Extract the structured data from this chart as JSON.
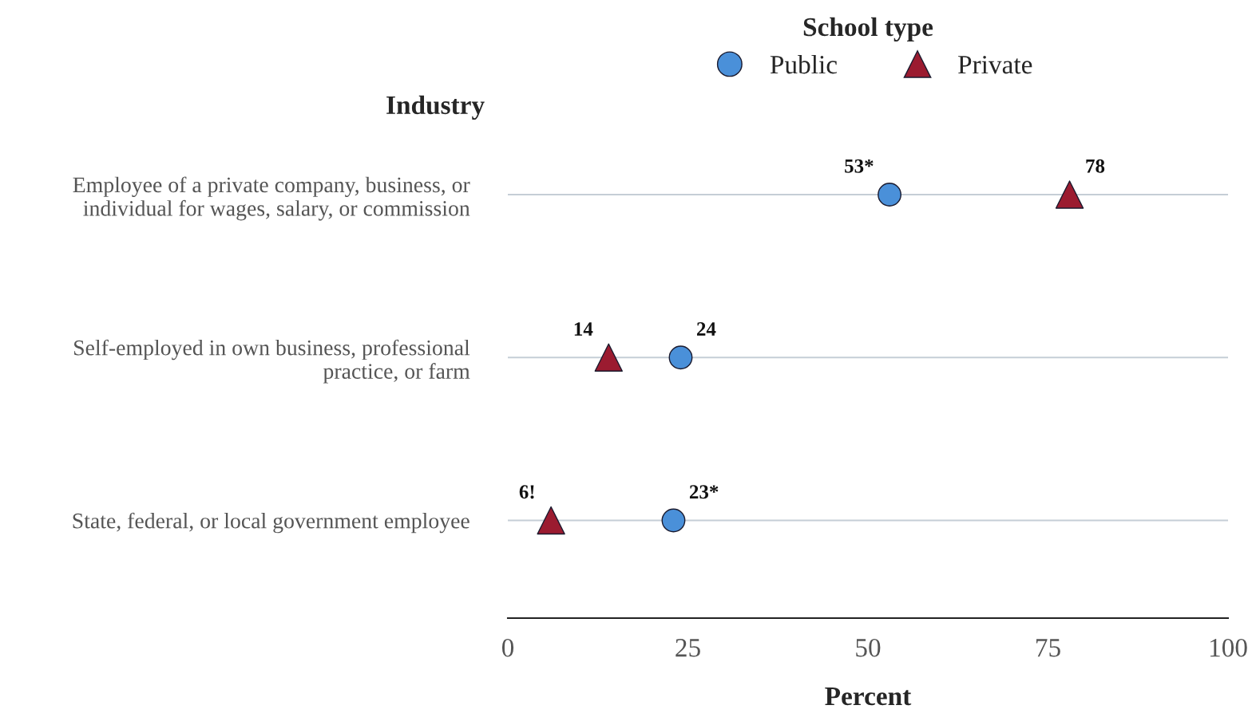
{
  "chart_data": {
    "type": "scatter",
    "orientation": "horizontal",
    "ylabel": "Industry",
    "xlabel": "Percent",
    "legend_title": "School type",
    "legend": "top",
    "categories": [
      "Employee of a private company, business, or individual for wages, salary, or commission",
      "Self-employed in own business, professional practice, or farm",
      "State, federal, or local government employee"
    ],
    "series": [
      {
        "name": "Public",
        "color": "#4a90d9",
        "marker": "circle",
        "values": [
          53,
          24,
          23
        ],
        "value_labels": [
          "53*",
          "24",
          "23*"
        ]
      },
      {
        "name": "Private",
        "color": "#9b1b30",
        "marker": "triangle",
        "values": [
          78,
          14,
          6
        ],
        "value_labels": [
          "78",
          "14",
          "6!"
        ]
      }
    ],
    "xlim": [
      0,
      100
    ],
    "xticks": [
      0,
      25,
      50,
      75,
      100
    ],
    "grid": "y"
  }
}
